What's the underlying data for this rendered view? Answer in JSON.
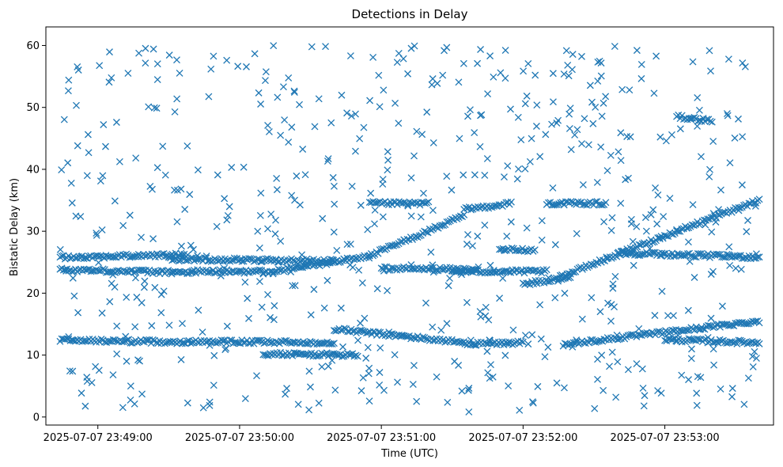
{
  "chart_data": {
    "type": "scatter",
    "title": "Detections in Delay",
    "xlabel": "Time (UTC)",
    "ylabel": "Bistatic Delay (km)",
    "x_ticks": [
      "2025-07-07 23:49:00",
      "2025-07-07 23:50:00",
      "2025-07-07 23:51:00",
      "2025-07-07 23:52:00",
      "2025-07-07 23:53:00"
    ],
    "y_ticks": [
      0,
      10,
      20,
      30,
      40,
      50,
      60
    ],
    "xlim": [
      "2025-07-07 23:48:38",
      "2025-07-07 23:53:46"
    ],
    "ylim": [
      -1.3,
      63
    ],
    "grid": false,
    "marker": "x",
    "color": "#1f77b4",
    "series": [
      {
        "name": "",
        "tracks": [
          {
            "from": "2025-07-07 23:48:44",
            "to": "2025-07-07 23:49:38",
            "y0": 25.8,
            "y1": 26.2
          },
          {
            "from": "2025-07-07 23:48:44",
            "to": "2025-07-07 23:49:40",
            "y0": 23.8,
            "y1": 23.3
          },
          {
            "from": "2025-07-07 23:48:44",
            "to": "2025-07-07 23:49:40",
            "y0": 12.4,
            "y1": 12.1
          },
          {
            "from": "2025-07-07 23:49:30",
            "to": "2025-07-07 23:50:40",
            "y0": 25.5,
            "y1": 25.2
          },
          {
            "from": "2025-07-07 23:49:40",
            "to": "2025-07-07 23:50:10",
            "y0": 23.5,
            "y1": 23.5
          },
          {
            "from": "2025-07-07 23:49:40",
            "to": "2025-07-07 23:50:40",
            "y0": 12.2,
            "y1": 12.0
          },
          {
            "from": "2025-07-07 23:50:10",
            "to": "2025-07-07 23:50:50",
            "y0": 10.2,
            "y1": 10.0
          },
          {
            "from": "2025-07-07 23:50:10",
            "to": "2025-07-07 23:50:55",
            "y0": 23.2,
            "y1": 26.0
          },
          {
            "from": "2025-07-07 23:50:40",
            "to": "2025-07-07 23:51:40",
            "y0": 14.2,
            "y1": 11.8
          },
          {
            "from": "2025-07-07 23:50:55",
            "to": "2025-07-07 23:51:35",
            "y0": 26.0,
            "y1": 32.5
          },
          {
            "from": "2025-07-07 23:50:55",
            "to": "2025-07-07 23:51:20",
            "y0": 34.5,
            "y1": 34.5
          },
          {
            "from": "2025-07-07 23:51:00",
            "to": "2025-07-07 23:51:40",
            "y0": 24.0,
            "y1": 23.8
          },
          {
            "from": "2025-07-07 23:51:40",
            "to": "2025-07-07 23:52:00",
            "y0": 11.8,
            "y1": 12.0
          },
          {
            "from": "2025-07-07 23:51:35",
            "to": "2025-07-07 23:51:55",
            "y0": 33.5,
            "y1": 34.5
          },
          {
            "from": "2025-07-07 23:51:30",
            "to": "2025-07-07 23:52:10",
            "y0": 23.5,
            "y1": 23.5
          },
          {
            "from": "2025-07-07 23:51:50",
            "to": "2025-07-07 23:52:05",
            "y0": 27.0,
            "y1": 27.0
          },
          {
            "from": "2025-07-07 23:52:00",
            "to": "2025-07-07 23:52:20",
            "y0": 21.5,
            "y1": 22.5
          },
          {
            "from": "2025-07-07 23:52:10",
            "to": "2025-07-07 23:52:35",
            "y0": 34.5,
            "y1": 34.5
          },
          {
            "from": "2025-07-07 23:52:15",
            "to": "2025-07-07 23:53:05",
            "y0": 22.5,
            "y1": 30.0
          },
          {
            "from": "2025-07-07 23:52:17",
            "to": "2025-07-07 23:53:40",
            "y0": 11.7,
            "y1": 15.5
          },
          {
            "from": "2025-07-07 23:52:40",
            "to": "2025-07-07 23:53:40",
            "y0": 26.5,
            "y1": 25.8
          },
          {
            "from": "2025-07-07 23:53:05",
            "to": "2025-07-07 23:53:40",
            "y0": 30.0,
            "y1": 35.0
          },
          {
            "from": "2025-07-07 23:53:05",
            "to": "2025-07-07 23:53:20",
            "y0": 48.5,
            "y1": 47.8
          },
          {
            "from": "2025-07-07 23:53:00",
            "to": "2025-07-07 23:53:40",
            "y0": 12.5,
            "y1": 12.0
          }
        ],
        "scatter_range": {
          "from": "2025-07-07 23:48:44",
          "to": "2025-07-07 23:53:40",
          "y0": 0.8,
          "y1": 60.0,
          "count": 620
        }
      }
    ]
  }
}
